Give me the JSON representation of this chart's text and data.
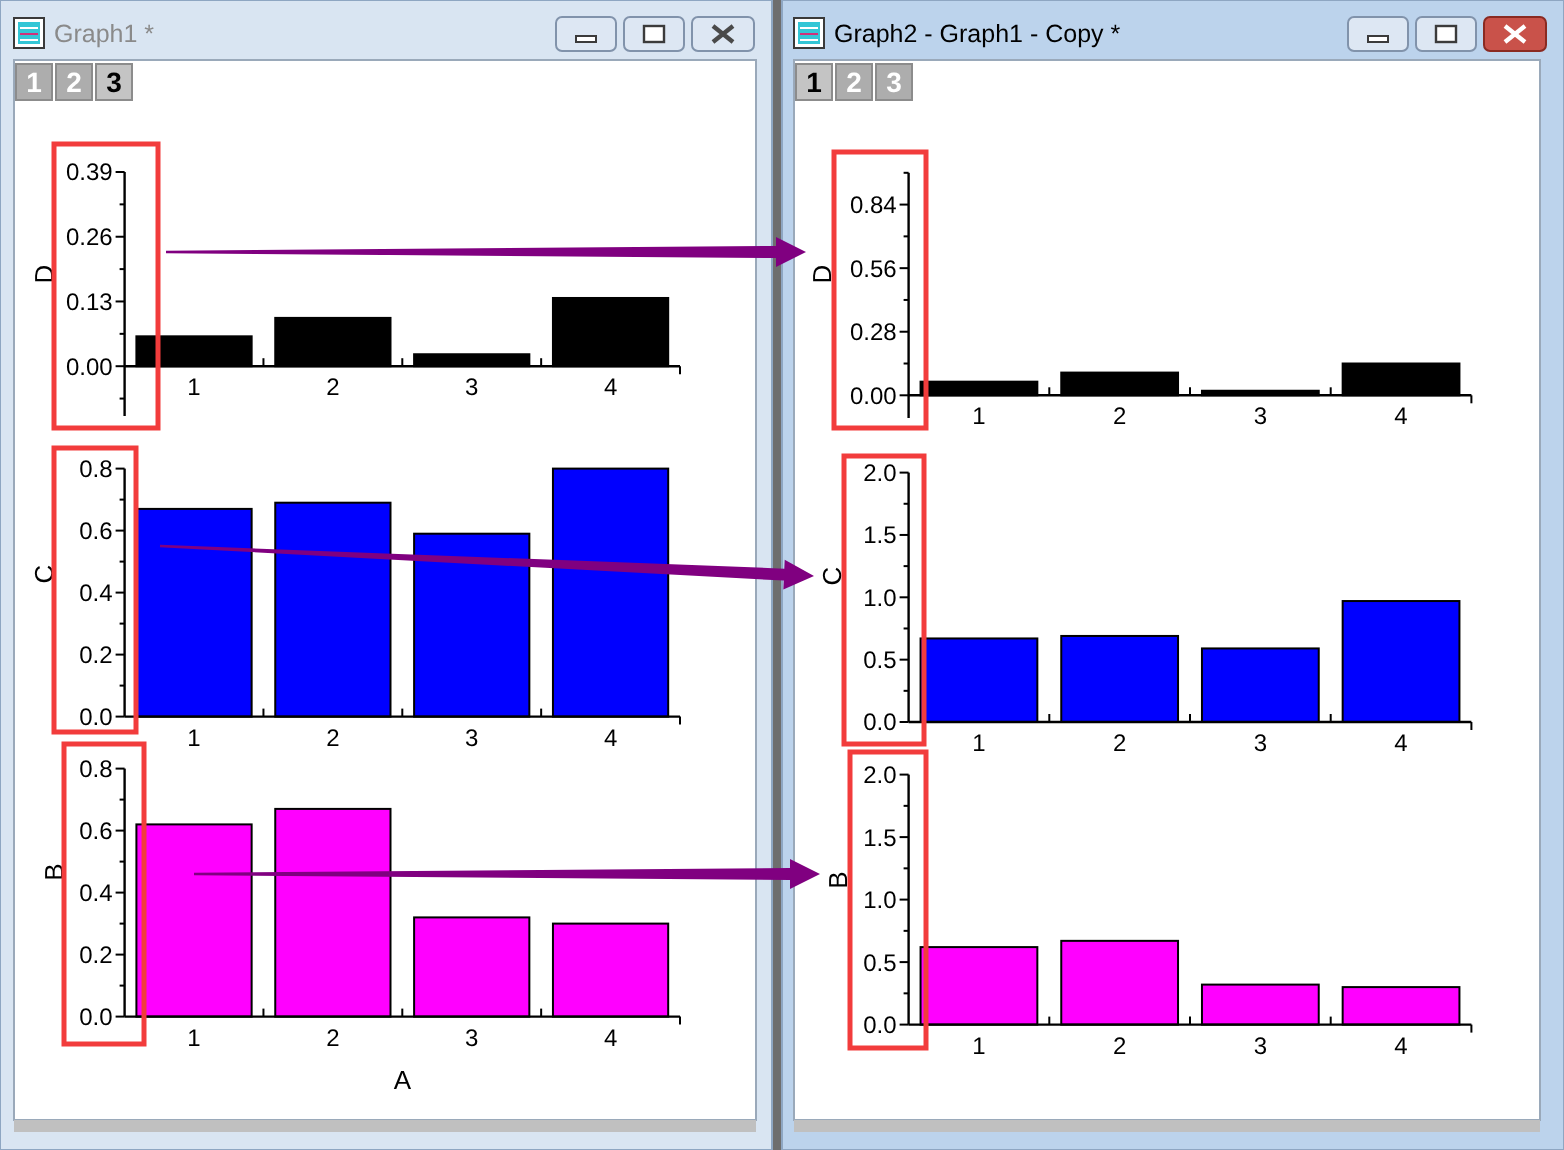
{
  "chart_data": [
    {
      "type": "bar",
      "title": "Graph1 *",
      "annotations": [
        "1",
        "2",
        "3"
      ],
      "categories": [
        "1",
        "2",
        "3",
        "4"
      ],
      "values": [
        0.06,
        0.097,
        0.024,
        0.137
      ],
      "color": "#000000",
      "ylabel": "D",
      "ylim": [
        -0.1,
        0.39
      ],
      "yticks": [
        {
          "value": -0.065,
          "label": null
        },
        {
          "value": 0,
          "label": "0.00"
        },
        {
          "value": 0.065,
          "label": null
        },
        0.13,
        {
          "value": 0.195,
          "label": null
        },
        0.26,
        {
          "value": 0.325,
          "label": null
        },
        0.39
      ]
    },
    {
      "type": "bar",
      "categories": [
        "1",
        "2",
        "3",
        "4"
      ],
      "values": [
        0.67,
        0.69,
        0.59,
        0.8
      ],
      "color": "#0000ff",
      "ylabel": "C",
      "ylim": [
        0,
        0.8
      ],
      "yticks": [
        {
          "value": 0,
          "label": "0.0"
        },
        {
          "value": 0.1,
          "label": null
        },
        0.2,
        {
          "value": 0.3,
          "label": null
        },
        0.4,
        {
          "value": 0.5,
          "label": null
        },
        0.6,
        {
          "value": 0.7,
          "label": null
        },
        0.8
      ]
    },
    {
      "type": "bar",
      "categories": [
        "1",
        "2",
        "3",
        "4"
      ],
      "values": [
        0.62,
        0.67,
        0.32,
        0.3
      ],
      "color": "#ff00ff",
      "xlabel": "A",
      "ylabel": "B",
      "ylim": [
        0,
        0.8
      ],
      "yticks": [
        {
          "value": 0,
          "label": "0.0"
        },
        {
          "value": 0.1,
          "label": null
        },
        0.2,
        {
          "value": 0.3,
          "label": null
        },
        0.4,
        {
          "value": 0.5,
          "label": null
        },
        0.6,
        {
          "value": 0.7,
          "label": null
        },
        0.8
      ]
    },
    {
      "type": "bar",
      "title": "Graph2 - Graph1 - Copy *",
      "annotations": [
        "1",
        "2",
        "3"
      ],
      "categories": [
        "1",
        "2",
        "3",
        "4"
      ],
      "values": [
        0.06,
        0.1,
        0.02,
        0.14
      ],
      "color": "#000000",
      "ylabel": "D",
      "ylim": [
        -0.1,
        0.98
      ],
      "yticks": [
        {
          "value": 0,
          "label": "0.00"
        },
        {
          "value": 0.14,
          "label": null
        },
        0.28,
        {
          "value": 0.42,
          "label": null
        },
        0.56,
        {
          "value": 0.7,
          "label": null
        },
        0.84,
        {
          "value": 0.98,
          "label": null
        }
      ]
    },
    {
      "type": "bar",
      "categories": [
        "1",
        "2",
        "3",
        "4"
      ],
      "values": [
        0.67,
        0.69,
        0.59,
        0.97
      ],
      "color": "#0000ff",
      "ylabel": "C",
      "ylim": [
        0,
        2
      ],
      "yticks": [
        {
          "value": 0,
          "label": "0.0"
        },
        {
          "value": 0.25,
          "label": null
        },
        0.5,
        {
          "value": 0.75,
          "label": null
        },
        {
          "value": 1,
          "label": "1.0"
        },
        {
          "value": 1.25,
          "label": null
        },
        1.5,
        {
          "value": 1.75,
          "label": null
        },
        {
          "value": 2,
          "label": "2.0"
        }
      ]
    },
    {
      "type": "bar",
      "categories": [
        "1",
        "2",
        "3",
        "4"
      ],
      "values": [
        0.62,
        0.67,
        0.32,
        0.3
      ],
      "color": "#ff00ff",
      "ylabel": "B",
      "ylim": [
        0,
        2
      ],
      "yticks": [
        {
          "value": 0,
          "label": "0.0"
        },
        {
          "value": 0.25,
          "label": null
        },
        0.5,
        {
          "value": 0.75,
          "label": null
        },
        {
          "value": 1,
          "label": "1.0"
        },
        {
          "value": 1.25,
          "label": null
        },
        1.5,
        {
          "value": 1.75,
          "label": null
        },
        {
          "value": 2,
          "label": "2.0"
        }
      ]
    }
  ]
}
